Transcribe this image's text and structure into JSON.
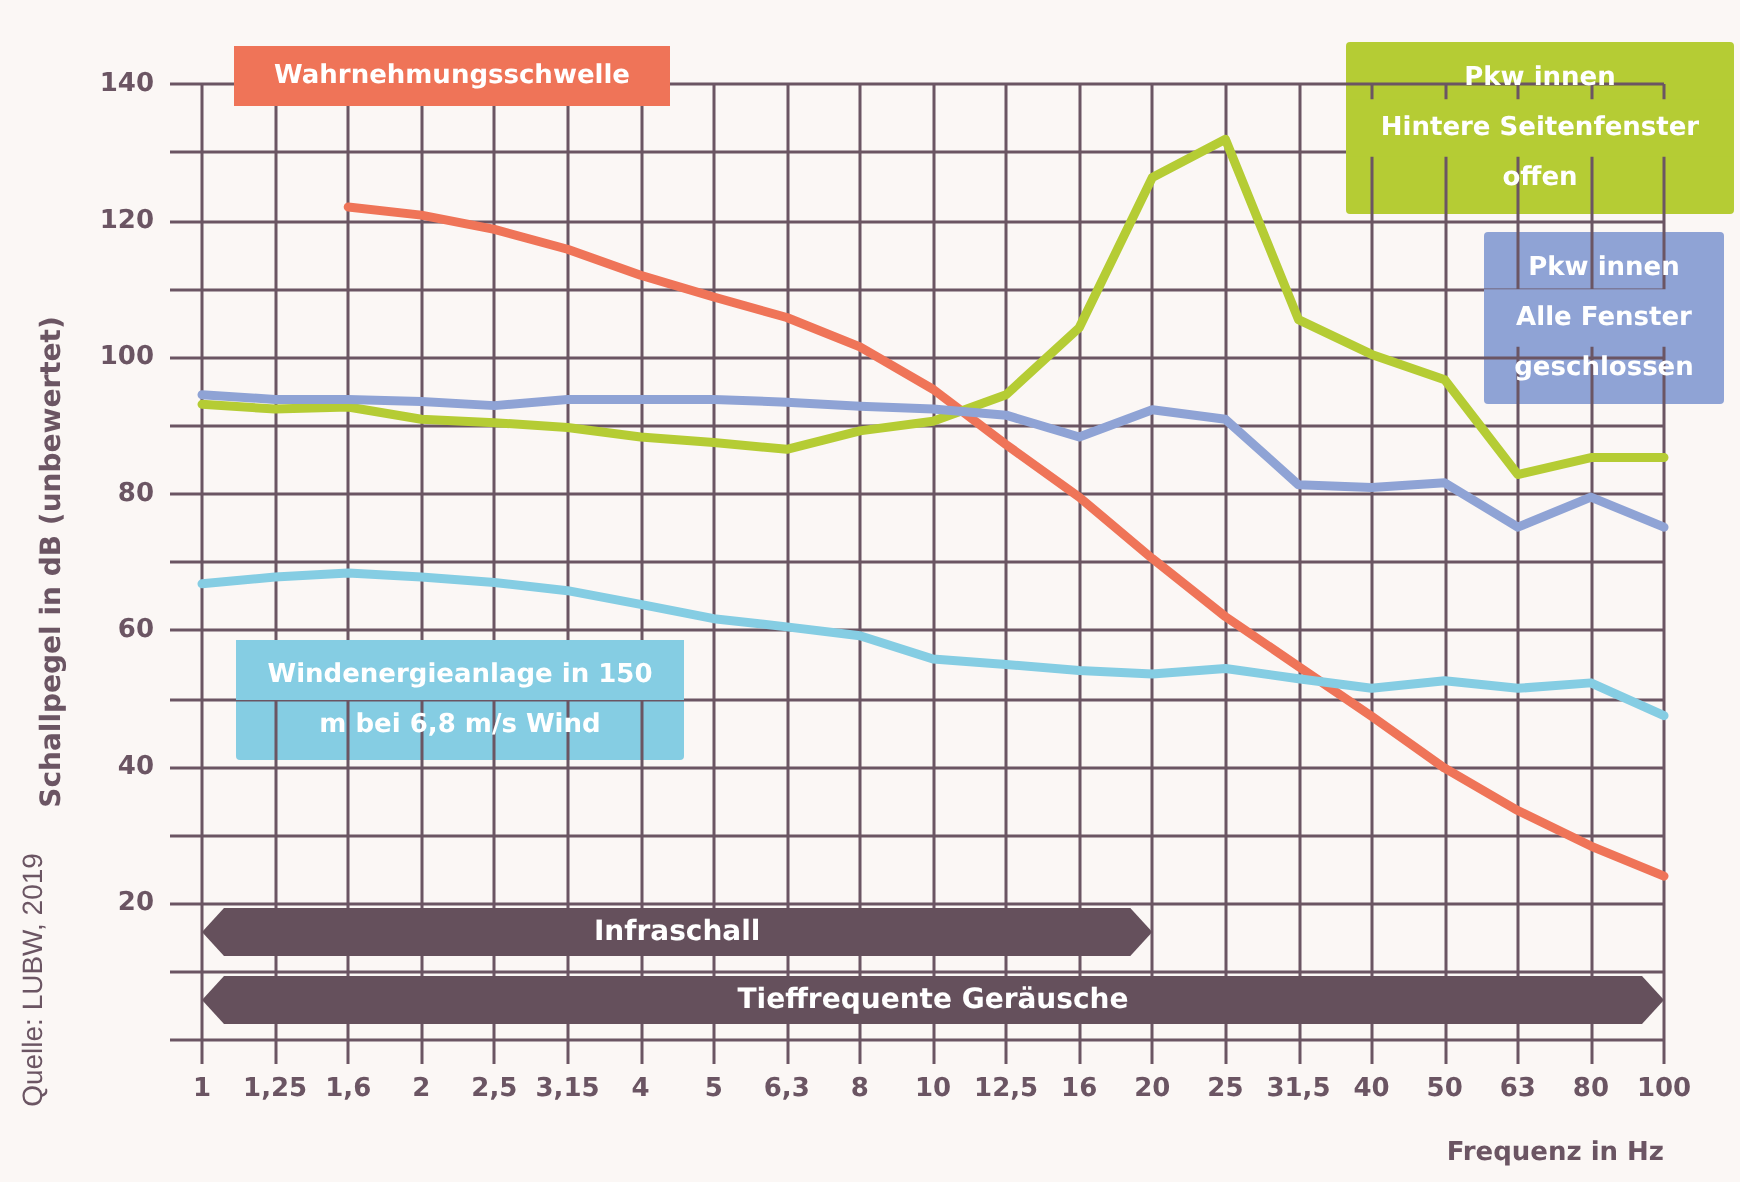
{
  "chart_data": {
    "type": "line",
    "ylabel": "Schallpegel in dB (unbewertet)",
    "xlabel": "Frequenz in Hz",
    "annotations": [
      "Quelle: LUBW, 2019"
    ],
    "categories": [
      "1",
      "1,25",
      "1,6",
      "2",
      "2,5",
      "3,15",
      "4",
      "5",
      "6,3",
      "8",
      "10",
      "12,5",
      "16",
      "20",
      "25",
      "31,5",
      "40",
      "50",
      "63",
      "80",
      "100"
    ],
    "series": [
      {
        "name": "Wahrnehmungsschwelle",
        "color": "#ef7458",
        "values": [
          null,
          null,
          122,
          120.8,
          118.7,
          115.8,
          112,
          108.8,
          105.8,
          101.5,
          95.3,
          87.2,
          79.5,
          70.5,
          62,
          54.7,
          47.4,
          39.8,
          33.6,
          28.4,
          24
        ]
      },
      {
        "name": "Pkw innen\nHintere Seitenfenster\noffen",
        "color": "#b5cc34",
        "values": [
          93.1,
          92.4,
          92.7,
          90.9,
          90.4,
          89.7,
          88.3,
          87.5,
          86.5,
          89.2,
          90.6,
          94.5,
          104.3,
          126.3,
          131.9,
          105.5,
          100.4,
          96.7,
          82.8,
          85.3,
          85.3
        ]
      },
      {
        "name": "Pkw innen\nAlle Fenster\ngeschlossen",
        "color": "#8fa3d5",
        "values": [
          94.5,
          93.8,
          93.8,
          93.5,
          92.9,
          93.8,
          93.8,
          93.8,
          93.4,
          92.8,
          92.4,
          91.5,
          88.3,
          92.3,
          90.9,
          81.3,
          80.9,
          81.6,
          75.1,
          79.5,
          75.1
        ]
      },
      {
        "name": "Windenergieanlage in 150\nm bei 6,8 m/s Wind",
        "color": "#85cde3",
        "values": [
          66.8,
          67.8,
          68.4,
          67.8,
          67,
          65.8,
          63.8,
          61.7,
          60.5,
          59.2,
          55.8,
          55,
          54.1,
          53.6,
          54.4,
          52.9,
          51.5,
          52.6,
          51.5,
          52.3,
          47.5
        ]
      }
    ],
    "bands": [
      {
        "axis": "x",
        "from": "1",
        "to": "20",
        "label": "Infraschall",
        "color": "#65505c"
      },
      {
        "axis": "x",
        "from": "1",
        "to": "100",
        "label": "Tieffrequente Geräusche",
        "color": "#65505c"
      }
    ],
    "ylim": [
      0,
      140
    ],
    "yticks": [
      {
        "value": 0,
        "label": null
      },
      {
        "value": 10,
        "label": null
      },
      20,
      {
        "value": 30,
        "label": null
      },
      40,
      {
        "value": 50,
        "label": null
      },
      60,
      {
        "value": 70,
        "label": null
      },
      80,
      {
        "value": 90,
        "label": null
      },
      100,
      {
        "value": 110,
        "label": null
      },
      120,
      {
        "value": 130,
        "label": null
      },
      140
    ],
    "grid": true,
    "marker": "none"
  }
}
